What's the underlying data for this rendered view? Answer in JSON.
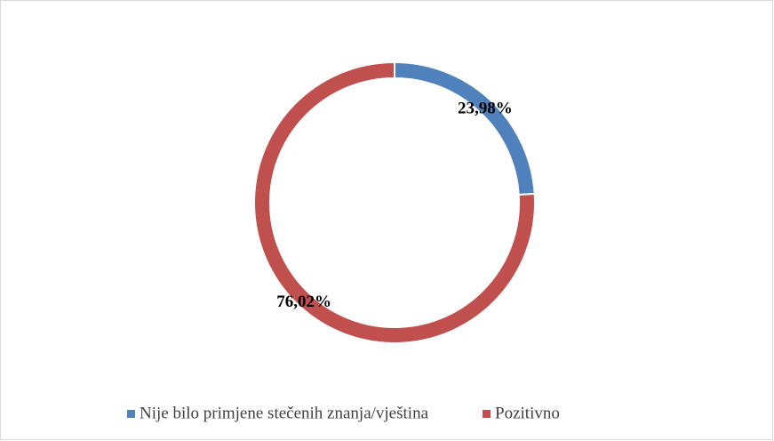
{
  "chart_data": {
    "type": "donut",
    "categories": [
      "Nije bilo primjene stečenih znanja/vještina",
      "Pozitivno"
    ],
    "values": [
      23.98,
      76.02
    ],
    "value_labels": [
      "23,98%",
      "76,02%"
    ],
    "colors": [
      "#4f81bd",
      "#c0504d"
    ],
    "legend": "bottom"
  }
}
